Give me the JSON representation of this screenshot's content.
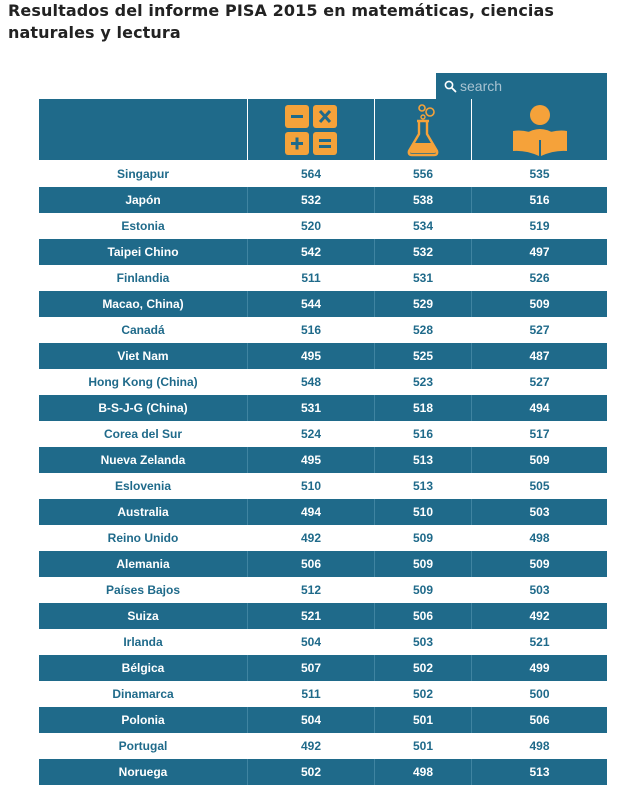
{
  "title": "Resultados del informe PISA 2015 en matemáticas, ciencias naturales y lectura",
  "search": {
    "placeholder": "search"
  },
  "header": {
    "country_label": "",
    "icons": [
      "calculator-icon",
      "flask-icon",
      "reader-icon"
    ]
  },
  "colors": {
    "primary": "#1f6a8a",
    "icon_orange": "#f5a23a"
  },
  "rows": [
    {
      "country": "Singapur",
      "math": "564",
      "science": "556",
      "reading": "535"
    },
    {
      "country": "Japón",
      "math": "532",
      "science": "538",
      "reading": "516"
    },
    {
      "country": "Estonia",
      "math": "520",
      "science": "534",
      "reading": "519"
    },
    {
      "country": "Taipei Chino",
      "math": "542",
      "science": "532",
      "reading": "497"
    },
    {
      "country": "Finlandia",
      "math": "511",
      "science": "531",
      "reading": "526"
    },
    {
      "country": "Macao, China)",
      "math": "544",
      "science": "529",
      "reading": "509"
    },
    {
      "country": "Canadá",
      "math": "516",
      "science": "528",
      "reading": "527"
    },
    {
      "country": "Viet Nam",
      "math": "495",
      "science": "525",
      "reading": "487"
    },
    {
      "country": "Hong Kong (China)",
      "math": "548",
      "science": "523",
      "reading": "527"
    },
    {
      "country": "B-S-J-G (China)",
      "math": "531",
      "science": "518",
      "reading": "494"
    },
    {
      "country": "Corea del Sur",
      "math": "524",
      "science": "516",
      "reading": "517"
    },
    {
      "country": "Nueva Zelanda",
      "math": "495",
      "science": "513",
      "reading": "509"
    },
    {
      "country": "Eslovenia",
      "math": "510",
      "science": "513",
      "reading": "505"
    },
    {
      "country": "Australia",
      "math": "494",
      "science": "510",
      "reading": "503"
    },
    {
      "country": "Reino Unido",
      "math": "492",
      "science": "509",
      "reading": "498"
    },
    {
      "country": "Alemania",
      "math": "506",
      "science": "509",
      "reading": "509"
    },
    {
      "country": "Países Bajos",
      "math": "512",
      "science": "509",
      "reading": "503"
    },
    {
      "country": "Suiza",
      "math": "521",
      "science": "506",
      "reading": "492"
    },
    {
      "country": "Irlanda",
      "math": "504",
      "science": "503",
      "reading": "521"
    },
    {
      "country": "Bélgica",
      "math": "507",
      "science": "502",
      "reading": "499"
    },
    {
      "country": "Dinamarca",
      "math": "511",
      "science": "502",
      "reading": "500"
    },
    {
      "country": "Polonia",
      "math": "504",
      "science": "501",
      "reading": "506"
    },
    {
      "country": "Portugal",
      "math": "492",
      "science": "501",
      "reading": "498"
    },
    {
      "country": "Noruega",
      "math": "502",
      "science": "498",
      "reading": "513"
    }
  ]
}
